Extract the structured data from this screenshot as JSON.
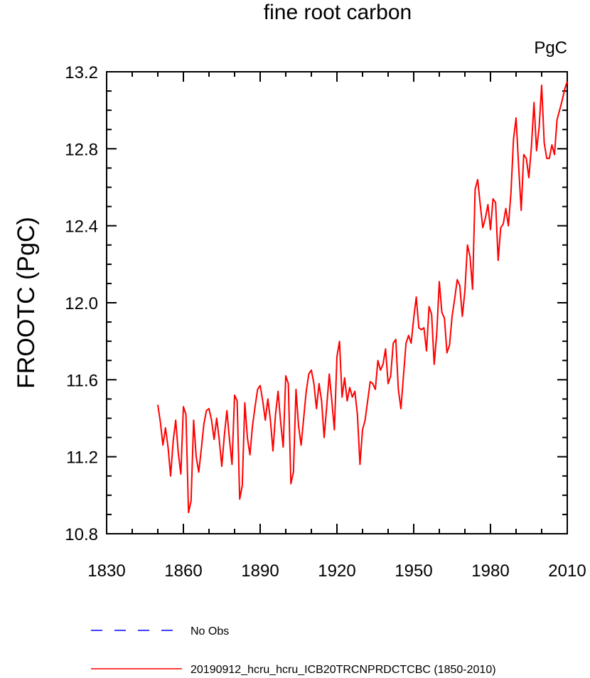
{
  "chart_data": {
    "type": "line",
    "title": "fine root carbon",
    "units_label": "PgC",
    "xlabel": "",
    "ylabel": "FROOTC  (PgC)",
    "xlim": [
      1830,
      2010
    ],
    "ylim": [
      10.8,
      13.2
    ],
    "xticks": [
      1830,
      1860,
      1890,
      1920,
      1950,
      1980,
      2010
    ],
    "xtick_labels": [
      "1830",
      "1860",
      "1890",
      "1920",
      "1950",
      "1980",
      "2010"
    ],
    "yticks": [
      10.8,
      11.2,
      11.6,
      12.0,
      12.4,
      12.8,
      13.2
    ],
    "ytick_labels": [
      "10.8",
      "11.2",
      "11.6",
      "12.0",
      "12.4",
      "12.8",
      "13.2"
    ],
    "grid": false,
    "legend_position": "bottom",
    "series": [
      {
        "name": "20190912_hcru_hcru_ICB20TRCNPRDCTCBC (1850-2010)",
        "color": "#ff0000",
        "style": "solid",
        "x": [
          1850,
          1851,
          1852,
          1853,
          1854,
          1855,
          1856,
          1857,
          1858,
          1859,
          1860,
          1861,
          1862,
          1863,
          1864,
          1865,
          1866,
          1867,
          1868,
          1869,
          1870,
          1871,
          1872,
          1873,
          1874,
          1875,
          1876,
          1877,
          1878,
          1879,
          1880,
          1881,
          1882,
          1883,
          1884,
          1885,
          1886,
          1887,
          1888,
          1889,
          1890,
          1891,
          1892,
          1893,
          1894,
          1895,
          1896,
          1897,
          1898,
          1899,
          1900,
          1901,
          1902,
          1903,
          1904,
          1905,
          1906,
          1907,
          1908,
          1909,
          1910,
          1911,
          1912,
          1913,
          1914,
          1915,
          1916,
          1917,
          1918,
          1919,
          1920,
          1921,
          1922,
          1923,
          1924,
          1925,
          1926,
          1927,
          1928,
          1929,
          1930,
          1931,
          1932,
          1933,
          1934,
          1935,
          1936,
          1937,
          1938,
          1939,
          1940,
          1941,
          1942,
          1943,
          1944,
          1945,
          1946,
          1947,
          1948,
          1949,
          1950,
          1951,
          1952,
          1953,
          1954,
          1955,
          1956,
          1957,
          1958,
          1959,
          1960,
          1961,
          1962,
          1963,
          1964,
          1965,
          1966,
          1967,
          1968,
          1969,
          1970,
          1971,
          1972,
          1973,
          1974,
          1975,
          1976,
          1977,
          1978,
          1979,
          1980,
          1981,
          1982,
          1983,
          1984,
          1985,
          1986,
          1987,
          1988,
          1989,
          1990,
          1991,
          1992,
          1993,
          1994,
          1995,
          1996,
          1997,
          1998,
          1999,
          2000,
          2001,
          2002,
          2003,
          2004,
          2005,
          2006,
          2007,
          2008,
          2009,
          2010
        ],
        "values": [
          11.47,
          11.38,
          11.26,
          11.35,
          11.25,
          11.1,
          11.28,
          11.39,
          11.22,
          11.11,
          11.46,
          11.42,
          10.91,
          10.97,
          11.39,
          11.2,
          11.12,
          11.24,
          11.37,
          11.44,
          11.45,
          11.39,
          11.29,
          11.4,
          11.29,
          11.15,
          11.31,
          11.44,
          11.29,
          11.16,
          11.52,
          11.49,
          10.98,
          11.05,
          11.48,
          11.3,
          11.21,
          11.36,
          11.46,
          11.55,
          11.57,
          11.49,
          11.39,
          11.5,
          11.39,
          11.23,
          11.42,
          11.54,
          11.38,
          11.25,
          11.62,
          11.58,
          11.06,
          11.12,
          11.55,
          11.36,
          11.26,
          11.4,
          11.54,
          11.63,
          11.65,
          11.58,
          11.45,
          11.58,
          11.49,
          11.3,
          11.46,
          11.63,
          11.49,
          11.34,
          11.72,
          11.8,
          11.51,
          11.61,
          11.49,
          11.56,
          11.51,
          11.54,
          11.42,
          11.16,
          11.34,
          11.39,
          11.49,
          11.59,
          11.58,
          11.55,
          11.7,
          11.65,
          11.68,
          11.76,
          11.58,
          11.62,
          11.79,
          11.81,
          11.55,
          11.45,
          11.62,
          11.79,
          11.83,
          11.79,
          11.92,
          12.03,
          11.87,
          11.86,
          11.87,
          11.75,
          11.98,
          11.94,
          11.68,
          11.84,
          12.11,
          11.95,
          11.92,
          11.74,
          11.78,
          11.93,
          12.02,
          12.12,
          12.09,
          11.93,
          12.06,
          12.3,
          12.24,
          12.07,
          12.59,
          12.64,
          12.51,
          12.39,
          12.44,
          12.51,
          12.38,
          12.54,
          12.52,
          12.22,
          12.39,
          12.41,
          12.49,
          12.4,
          12.57,
          12.85,
          12.96,
          12.71,
          12.48,
          12.77,
          12.75,
          12.65,
          12.81,
          13.04,
          12.79,
          12.91,
          13.13,
          12.83,
          12.75,
          12.75,
          12.82,
          12.77,
          12.95,
          13.0,
          13.05,
          13.11,
          13.15
        ]
      },
      {
        "name": "No Obs",
        "color": "#0000ff",
        "style": "dashed",
        "x": [],
        "values": []
      }
    ]
  }
}
